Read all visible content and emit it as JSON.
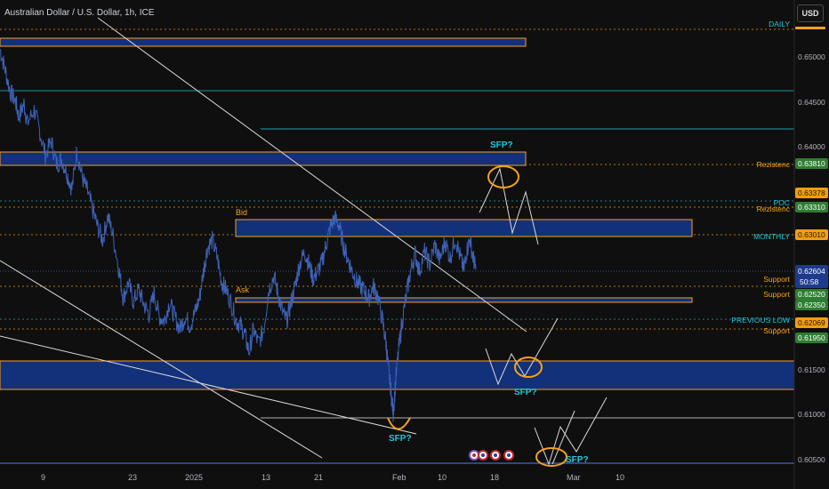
{
  "header": {
    "title": "Australian Dollar / U.S. Dollar, 1h, ICE"
  },
  "currency_button": {
    "label": "USD"
  },
  "colors": {
    "background": "#0f0f0f",
    "price_line": "#3e62b8",
    "zone_fill": "#13307a",
    "zone_border": "#f7a21b",
    "teal": "#26c6da",
    "orange": "#f7a21b",
    "white_line": "#d9d9d9",
    "green_tag": "#2e7d32",
    "blue_tag": "#1e3a8a",
    "orange_tag": "#f59e0b"
  },
  "chart_data": {
    "type": "line",
    "symbol": "Australian Dollar / U.S. Dollar",
    "interval": "1h",
    "exchange": "ICE",
    "ylim": [
      0.6035,
      0.656
    ],
    "x_tick_labels": [
      "9",
      "23",
      "2025",
      "13",
      "21",
      "Feb",
      "10",
      "18",
      "Mar",
      "10"
    ],
    "y_tick_labels": [
      "0.65000",
      "0.64500",
      "0.64000",
      "0.61500",
      "0.61000",
      "0.60500"
    ],
    "y_ticks": [
      0.65,
      0.645,
      0.64,
      0.615,
      0.61,
      0.605
    ],
    "price_path": [
      [
        0.0,
        0.6508
      ],
      [
        0.6,
        0.6485
      ],
      [
        1.2,
        0.646
      ],
      [
        1.8,
        0.645
      ],
      [
        2.2,
        0.6432
      ],
      [
        2.8,
        0.6447
      ],
      [
        3.2,
        0.6425
      ],
      [
        4.0,
        0.644
      ],
      [
        4.6,
        0.6418
      ],
      [
        5.3,
        0.639
      ],
      [
        6.0,
        0.6405
      ],
      [
        6.6,
        0.638
      ],
      [
        7.2,
        0.6385
      ],
      [
        7.8,
        0.637
      ],
      [
        8.4,
        0.6352
      ],
      [
        9.0,
        0.6395
      ],
      [
        9.6,
        0.6365
      ],
      [
        10.2,
        0.635
      ],
      [
        10.8,
        0.633
      ],
      [
        11.4,
        0.631
      ],
      [
        12.0,
        0.6295
      ],
      [
        12.6,
        0.6322
      ],
      [
        13.2,
        0.63
      ],
      [
        13.9,
        0.6262
      ],
      [
        14.4,
        0.623
      ],
      [
        15.0,
        0.6248
      ],
      [
        15.6,
        0.6226
      ],
      [
        16.2,
        0.624
      ],
      [
        16.8,
        0.6224
      ],
      [
        17.4,
        0.6212
      ],
      [
        18.0,
        0.6236
      ],
      [
        18.6,
        0.621
      ],
      [
        19.2,
        0.6205
      ],
      [
        19.8,
        0.6226
      ],
      [
        20.4,
        0.621
      ],
      [
        21.0,
        0.6196
      ],
      [
        21.6,
        0.621
      ],
      [
        22.2,
        0.62
      ],
      [
        22.8,
        0.6215
      ],
      [
        23.3,
        0.623
      ],
      [
        23.8,
        0.6262
      ],
      [
        24.2,
        0.6285
      ],
      [
        24.8,
        0.6295
      ],
      [
        25.4,
        0.6275
      ],
      [
        25.9,
        0.6248
      ],
      [
        26.4,
        0.624
      ],
      [
        27.0,
        0.6225
      ],
      [
        27.6,
        0.6205
      ],
      [
        28.1,
        0.62
      ],
      [
        28.6,
        0.619
      ],
      [
        29.1,
        0.617
      ],
      [
        29.6,
        0.6195
      ],
      [
        30.2,
        0.618
      ],
      [
        30.8,
        0.6195
      ],
      [
        31.4,
        0.624
      ],
      [
        32.0,
        0.6255
      ],
      [
        32.5,
        0.6235
      ],
      [
        33.0,
        0.6215
      ],
      [
        33.5,
        0.6205
      ],
      [
        34.0,
        0.6225
      ],
      [
        34.5,
        0.6245
      ],
      [
        35.0,
        0.6268
      ],
      [
        35.6,
        0.6282
      ],
      [
        36.1,
        0.6268
      ],
      [
        36.6,
        0.6252
      ],
      [
        37.1,
        0.626
      ],
      [
        37.6,
        0.627
      ],
      [
        38.1,
        0.629
      ],
      [
        38.6,
        0.6309
      ],
      [
        39.1,
        0.632
      ],
      [
        39.6,
        0.6312
      ],
      [
        40.1,
        0.629
      ],
      [
        40.6,
        0.6275
      ],
      [
        41.1,
        0.6262
      ],
      [
        41.6,
        0.625
      ],
      [
        42.1,
        0.6244
      ],
      [
        42.6,
        0.6238
      ],
      [
        43.1,
        0.623
      ],
      [
        43.6,
        0.6244
      ],
      [
        44.1,
        0.6234
      ],
      [
        44.7,
        0.6205
      ],
      [
        45.1,
        0.618
      ],
      [
        45.4,
        0.615
      ],
      [
        45.7,
        0.6125
      ],
      [
        45.95,
        0.6102
      ],
      [
        46.2,
        0.6135
      ],
      [
        46.6,
        0.6175
      ],
      [
        47.0,
        0.6205
      ],
      [
        47.5,
        0.6235
      ],
      [
        48.0,
        0.6262
      ],
      [
        48.5,
        0.628
      ],
      [
        49.0,
        0.626
      ],
      [
        49.6,
        0.6282
      ],
      [
        50.2,
        0.6268
      ],
      [
        50.8,
        0.629
      ],
      [
        51.4,
        0.6272
      ],
      [
        52.0,
        0.6294
      ],
      [
        52.6,
        0.6275
      ],
      [
        53.2,
        0.6298
      ],
      [
        53.8,
        0.6275
      ],
      [
        54.2,
        0.6262
      ],
      [
        54.5,
        0.6282
      ],
      [
        54.9,
        0.6296
      ],
      [
        55.3,
        0.6275
      ],
      [
        55.6,
        0.6262
      ]
    ],
    "price_x_range": [
      0,
      55.6
    ],
    "current_price": "0.62604",
    "countdown": "50:58",
    "price_tags": [
      {
        "value": 0.6381,
        "label": "0.63810",
        "color": "green"
      },
      {
        "value": 0.63378,
        "label": "0.63378",
        "color": "orange"
      },
      {
        "value": 0.6331,
        "label": "0.63310",
        "color": "green"
      },
      {
        "value": 0.6301,
        "label": "0.63010",
        "color": "orange"
      },
      {
        "value": 0.6252,
        "label": "0.62520",
        "color": "green"
      },
      {
        "value": 0.6235,
        "label": "0.62350",
        "color": "green"
      },
      {
        "value": 0.62069,
        "label": "0.62069",
        "color": "orange"
      },
      {
        "value": 0.6195,
        "label": "0.61950",
        "color": "green"
      }
    ],
    "level_labels": [
      {
        "value": 0.6547,
        "text": "DAILY",
        "color": "teal"
      },
      {
        "value": 0.6381,
        "text": "Rezistenc",
        "color": "orange"
      },
      {
        "value": 0.63378,
        "text": "POC",
        "color": "teal"
      },
      {
        "value": 0.6331,
        "text": "Rezistenc",
        "color": "orange"
      },
      {
        "value": 0.6301,
        "text": "MONTHLY",
        "color": "teal"
      },
      {
        "value": 0.62604,
        "text": "Support",
        "color": "orange"
      },
      {
        "value": 0.6252,
        "text": "Support",
        "color": "orange"
      },
      {
        "value": 0.62069,
        "text": "PREVIOUS LOW",
        "color": "teal"
      },
      {
        "value": 0.6195,
        "text": "Support",
        "color": "orange"
      }
    ],
    "annotations": [
      {
        "text": "SFP?",
        "color": "teal"
      },
      {
        "text": "SFP?",
        "color": "teal"
      },
      {
        "text": "SFP?",
        "color": "teal"
      },
      {
        "text": "SFP?",
        "color": "teal"
      }
    ],
    "zone_labels": {
      "bid": "Bid",
      "ask": "Ask"
    }
  }
}
